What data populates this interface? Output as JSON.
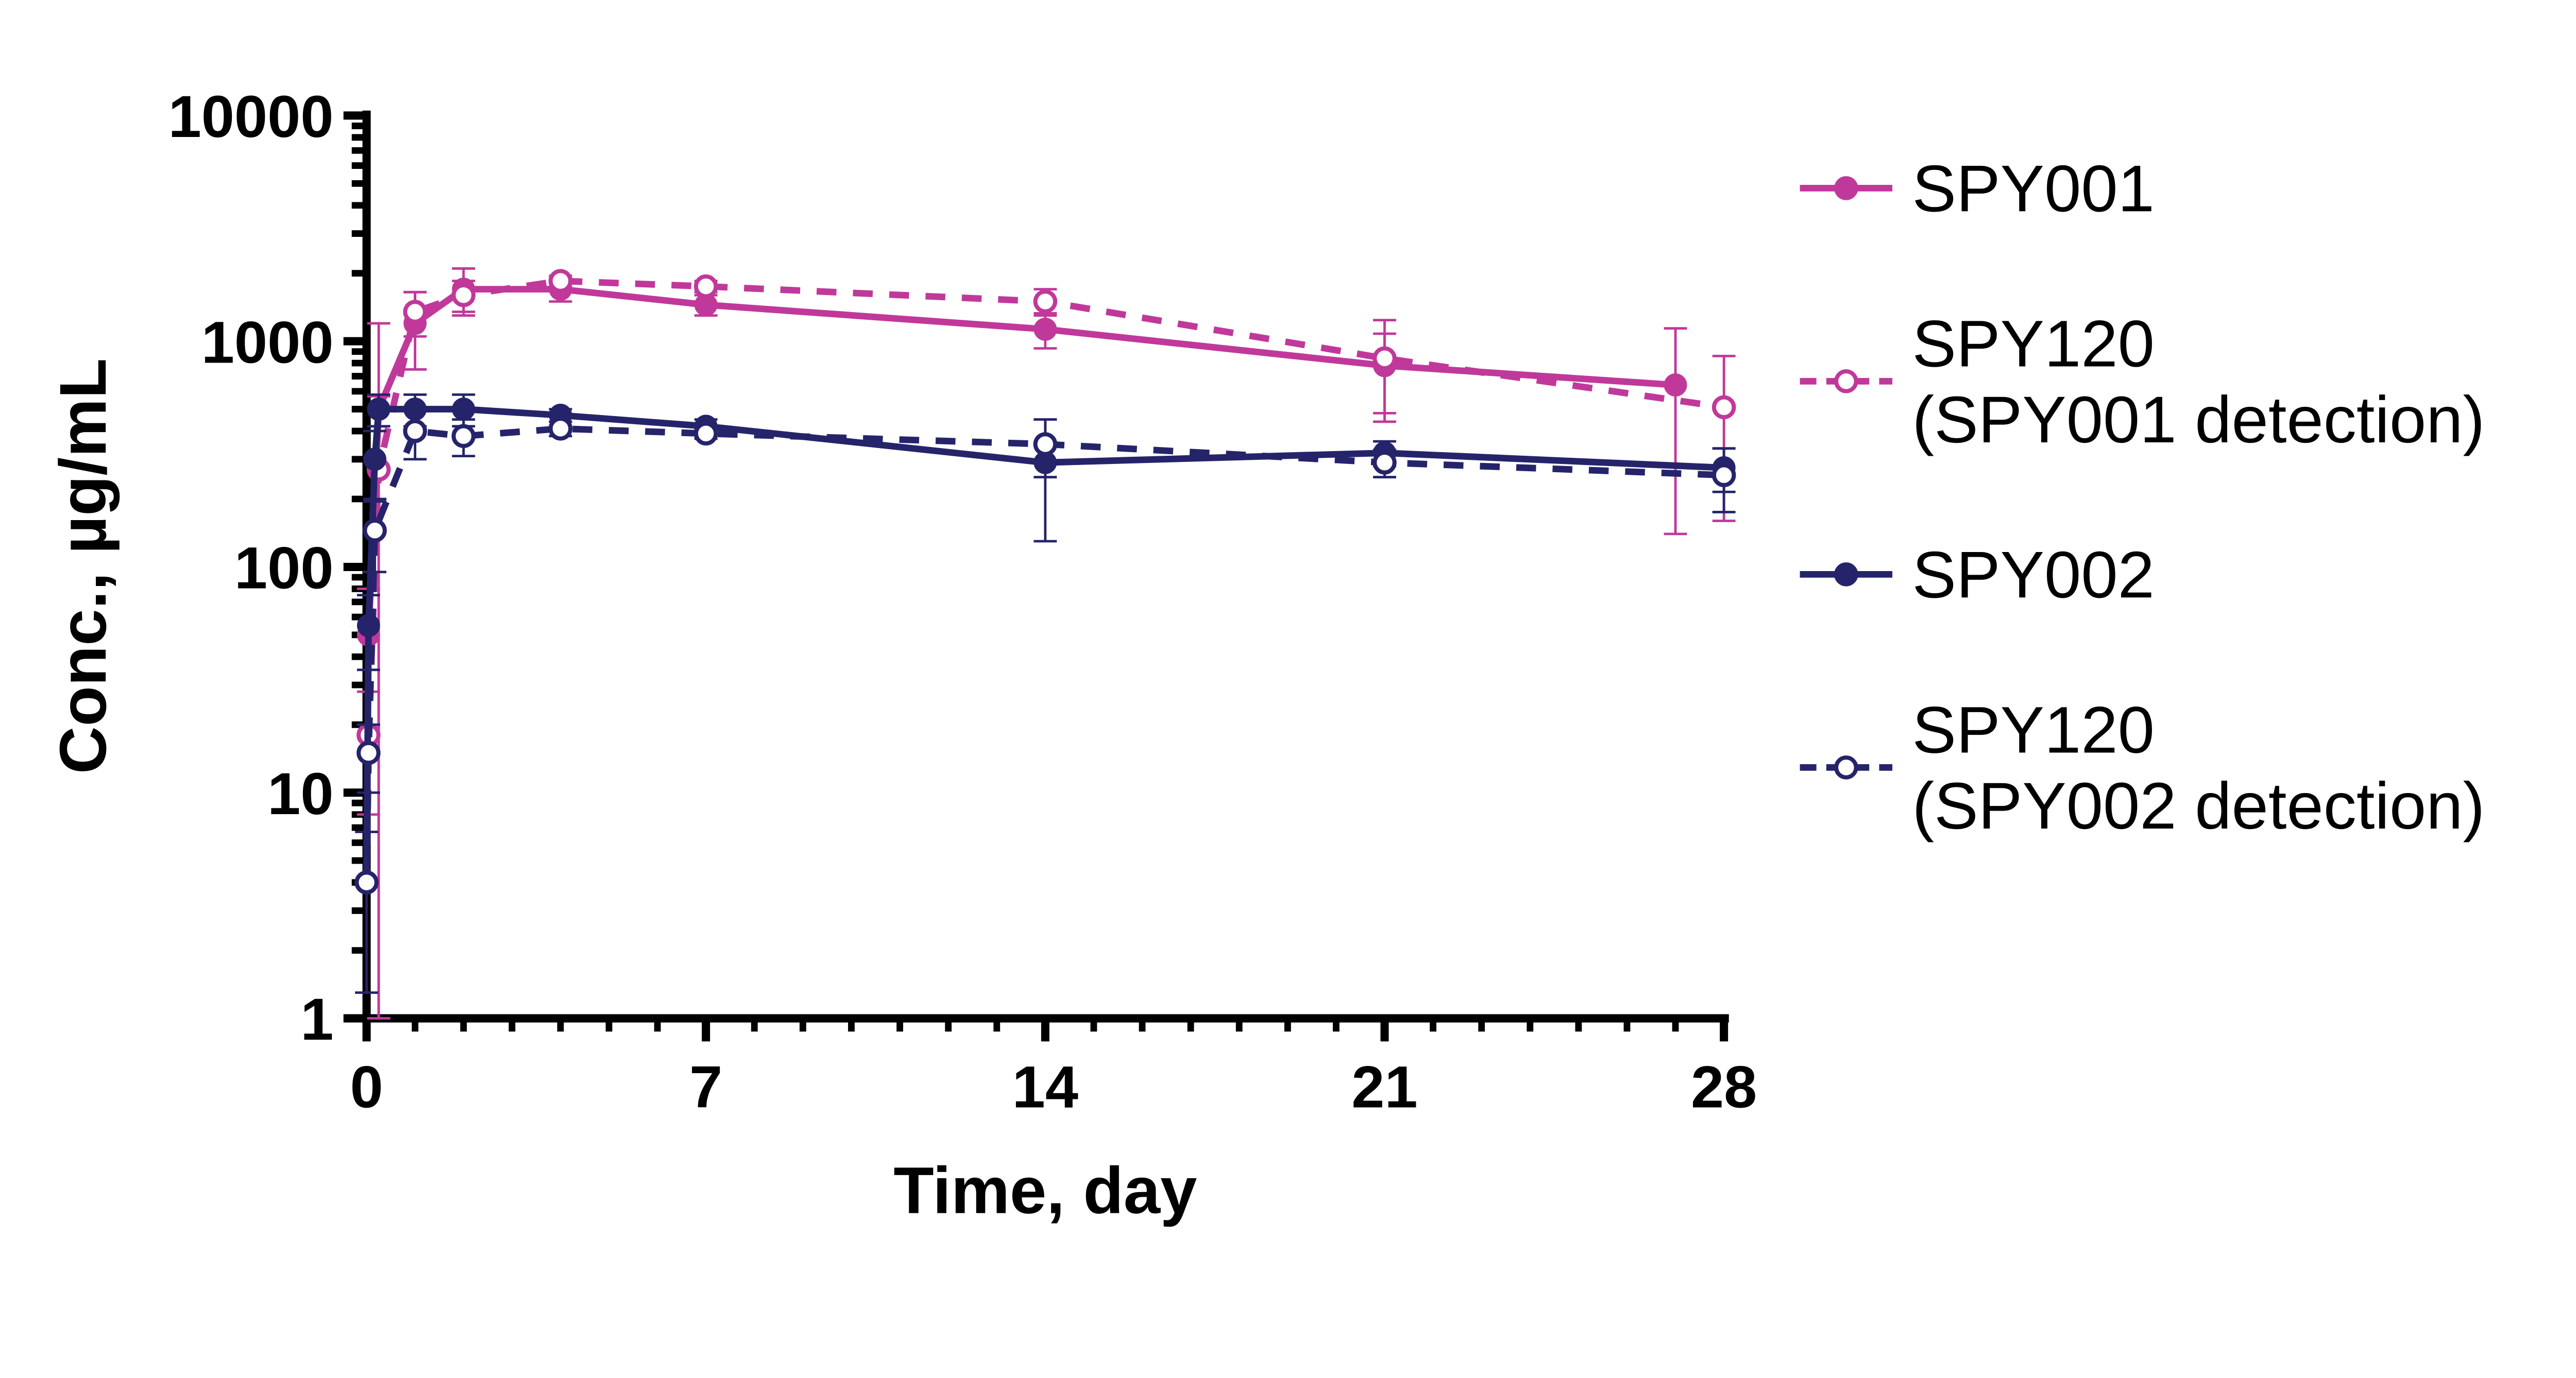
{
  "chart_data": {
    "type": "line",
    "title": "",
    "xlabel": "Time, day",
    "ylabel": "Conc., µg/mL",
    "x_scale": "linear",
    "y_scale": "log",
    "xlim": [
      0,
      28
    ],
    "ylim": [
      1,
      10000
    ],
    "x_ticks": [
      "0",
      "7",
      "14",
      "21",
      "28"
    ],
    "y_ticks": [
      "1",
      "10",
      "100",
      "1000",
      "10000"
    ],
    "grid": false,
    "legend_position": "right",
    "series": [
      {
        "name": "SPY001",
        "color": "#c0399a",
        "marker": "filled-circle",
        "line": "solid",
        "x": [
          0,
          0.04,
          0.25,
          1,
          2,
          4,
          7,
          14,
          21,
          27
        ],
        "y": [
          4,
          50,
          500,
          1200,
          1700,
          1700,
          1450,
          1130,
          780,
          640
        ],
        "err": [
          0,
          30,
          700,
          450,
          400,
          200,
          150,
          200,
          300,
          500
        ]
      },
      {
        "name": "SPY120\n(SPY001 detection)",
        "color": "#c0399a",
        "marker": "open-circle",
        "line": "dashed",
        "x": [
          0,
          0.04,
          0.25,
          1,
          2,
          4,
          7,
          14,
          21,
          28
        ],
        "y": [
          4,
          18,
          270,
          1350,
          1600,
          1850,
          1750,
          1500,
          840,
          510
        ],
        "err": [
          0,
          10,
          300,
          300,
          250,
          100,
          100,
          200,
          400,
          350
        ]
      },
      {
        "name": "SPY002",
        "color": "#25246a",
        "marker": "filled-circle",
        "line": "solid",
        "x": [
          0,
          0.04,
          0.17,
          0.25,
          1,
          2,
          4,
          7,
          14,
          21,
          28
        ],
        "y": [
          4,
          55,
          300,
          500,
          500,
          500,
          470,
          420,
          290,
          320,
          275
        ],
        "err": [
          2.7,
          20,
          100,
          80,
          80,
          80,
          30,
          30,
          160,
          40,
          60
        ]
      },
      {
        "name": "SPY120\n(SPY002 detection)",
        "color": "#25246a",
        "marker": "open-circle",
        "line": "dashed",
        "x": [
          0,
          0.04,
          0.17,
          1,
          2,
          4,
          7,
          14,
          21,
          28
        ],
        "y": [
          4,
          15,
          145,
          400,
          380,
          410,
          390,
          350,
          290,
          255
        ],
        "err": [
          0,
          5,
          50,
          100,
          70,
          30,
          20,
          100,
          40,
          80
        ]
      }
    ]
  }
}
